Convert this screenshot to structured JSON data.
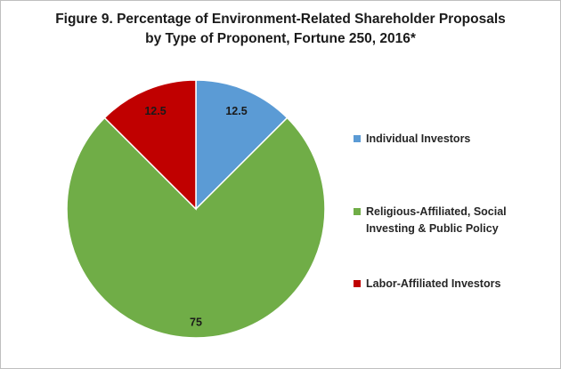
{
  "chart_data": {
    "type": "pie",
    "title_lines": [
      "Figure 9. Percentage of Environment-Related Shareholder Proposals",
      "by Type of Proponent, Fortune 250, 2016*"
    ],
    "slices": [
      {
        "name": "Individual Investors",
        "value": 12.5,
        "label": "12.5",
        "color": "#5b9bd5"
      },
      {
        "name": "Religious-Affiliated, Social Investing & Public Policy",
        "legend_lines": "Religious-Affiliated, Social\nInvesting & Public Policy",
        "value": 75,
        "label": "75",
        "color": "#70ad47"
      },
      {
        "name": "Labor-Affiliated Investors",
        "value": 12.5,
        "label": "12.5",
        "color": "#c00000"
      }
    ],
    "start_angle_deg": 0,
    "direction": "clockwise",
    "legend_position": "right",
    "border_color": "#ffffff"
  }
}
